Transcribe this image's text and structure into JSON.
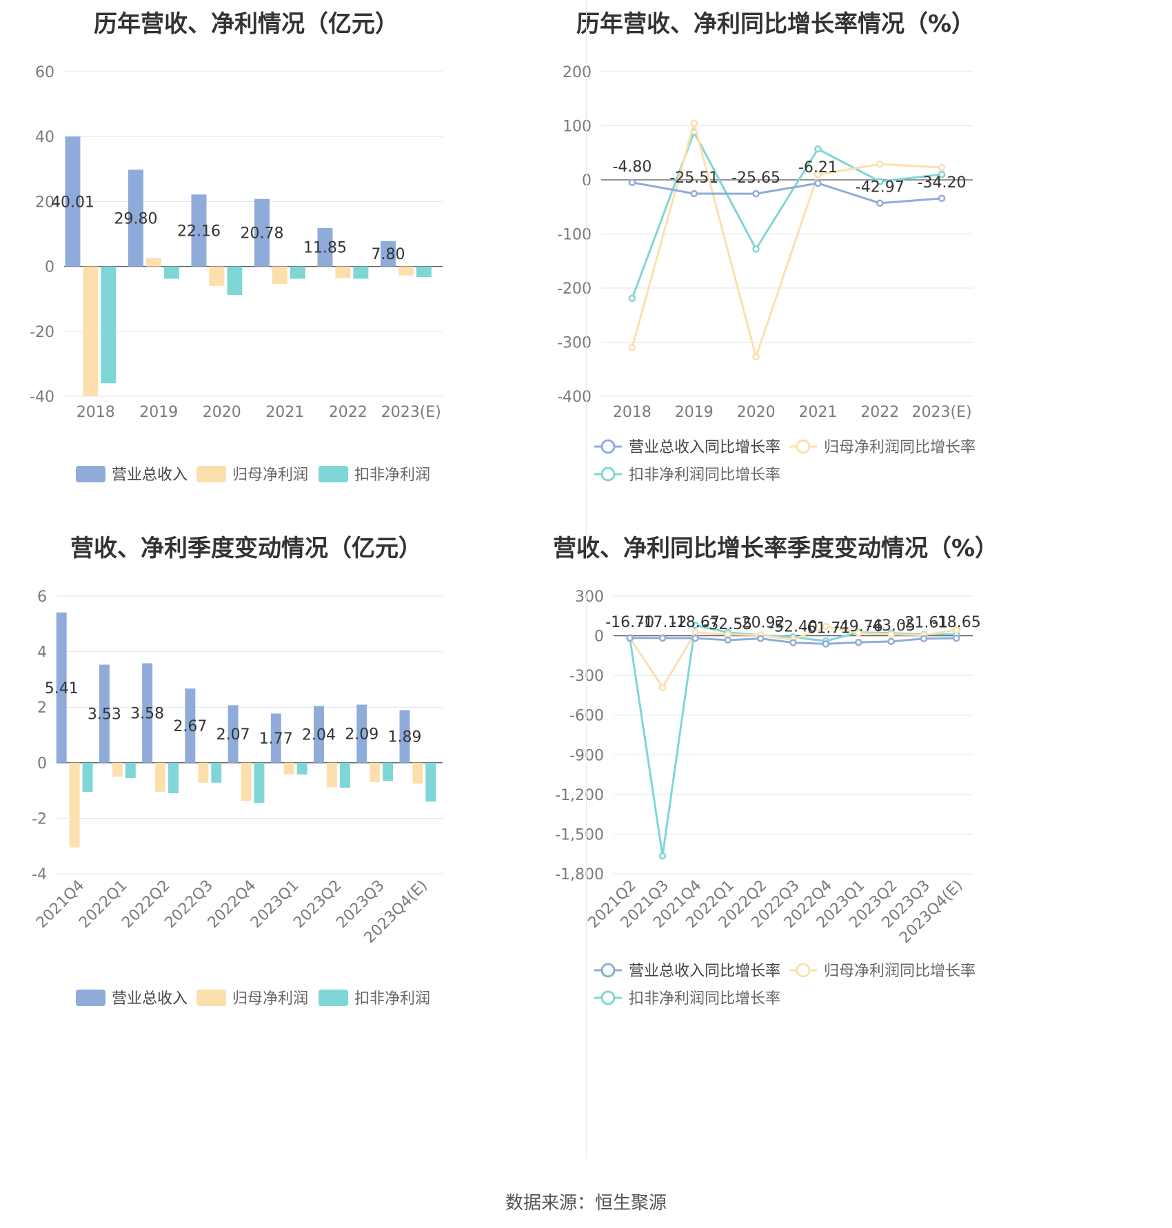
{
  "footer": {
    "source": "数据来源：恒生聚源"
  },
  "colors": {
    "revenue": "#8fabda",
    "net_profit": "#fddfae",
    "deducted_profit": "#7fd6d6"
  },
  "chart_data": [
    {
      "id": "annual_values",
      "type": "bar",
      "title": "历年营收、净利情况（亿元）",
      "categories": [
        "2018",
        "2019",
        "2020",
        "2021",
        "2022",
        "2023(E)"
      ],
      "ylim": [
        -40,
        60
      ],
      "yticks": [
        60,
        40,
        20,
        0,
        -20,
        -40
      ],
      "series": [
        {
          "name": "营业总收入",
          "values": [
            40.01,
            29.8,
            22.16,
            20.78,
            11.85,
            7.8
          ],
          "labels": [
            "40.01",
            "29.80",
            "22.16",
            "20.78",
            "11.85",
            "7.80"
          ]
        },
        {
          "name": "归母净利润",
          "values": [
            -40.0,
            2.6,
            -6.0,
            -5.4,
            -3.6,
            -2.8
          ]
        },
        {
          "name": "扣非净利润",
          "values": [
            -36.0,
            -3.8,
            -8.8,
            -3.8,
            -3.8,
            -3.3
          ]
        }
      ],
      "legend": "bottom"
    },
    {
      "id": "annual_growth",
      "type": "line",
      "title": "历年营收、净利同比增长率情况（%）",
      "categories": [
        "2018",
        "2019",
        "2020",
        "2021",
        "2022",
        "2023(E)"
      ],
      "ylim": [
        -400,
        200
      ],
      "yticks": [
        200,
        100,
        0,
        -100,
        -200,
        -300,
        -400
      ],
      "series": [
        {
          "name": "营业总收入同比增长率",
          "values": [
            -4.8,
            -25.51,
            -25.65,
            -6.21,
            -42.97,
            -34.2
          ],
          "labels": [
            "-4.80",
            "-25.51",
            "-25.65",
            "-6.21",
            "-42.97",
            "-34.20"
          ]
        },
        {
          "name": "归母净利润同比增长率",
          "values": [
            -310,
            105,
            -327,
            10,
            29,
            23
          ]
        },
        {
          "name": "扣非净利润同比增长率",
          "values": [
            -219,
            88,
            -128,
            57,
            -3,
            10
          ]
        }
      ],
      "legend": "bottom"
    },
    {
      "id": "quarterly_values",
      "type": "bar",
      "title": "营收、净利季度变动情况（亿元）",
      "categories": [
        "2021Q4",
        "2022Q1",
        "2022Q2",
        "2022Q3",
        "2022Q4",
        "2023Q1",
        "2023Q2",
        "2023Q3",
        "2023Q4(E)"
      ],
      "ylim": [
        -4,
        6
      ],
      "yticks": [
        6,
        4,
        2,
        0,
        -2,
        -4
      ],
      "series": [
        {
          "name": "营业总收入",
          "values": [
            5.41,
            3.53,
            3.58,
            2.67,
            2.07,
            1.77,
            2.04,
            2.09,
            1.89
          ],
          "labels": [
            "5.41",
            "3.53",
            "3.58",
            "2.67",
            "2.07",
            "1.77",
            "2.04",
            "2.09",
            "1.89"
          ]
        },
        {
          "name": "归母净利润",
          "values": [
            -3.05,
            -0.5,
            -1.05,
            -0.72,
            -1.38,
            -0.42,
            -0.88,
            -0.7,
            -0.75
          ]
        },
        {
          "name": "扣非净利润",
          "values": [
            -1.05,
            -0.55,
            -1.1,
            -0.72,
            -1.45,
            -0.42,
            -0.9,
            -0.65,
            -1.4
          ]
        }
      ],
      "legend": "bottom"
    },
    {
      "id": "quarterly_growth",
      "type": "line",
      "title": "营收、净利同比增长率季度变动情况（%）",
      "categories": [
        "2021Q2",
        "2021Q3",
        "2021Q4",
        "2022Q1",
        "2022Q2",
        "2022Q3",
        "2022Q4",
        "2023Q1",
        "2023Q2",
        "2023Q3",
        "2023Q4(E)"
      ],
      "ylim": [
        -1800,
        300
      ],
      "yticks": [
        300,
        0,
        -300,
        -600,
        -900,
        -1200,
        -1500,
        -1800
      ],
      "ytick_labels": [
        "300",
        "0",
        "-300",
        "-600",
        "-900",
        "-1,200",
        "-1,500",
        "-1,800"
      ],
      "series": [
        {
          "name": "营业总收入同比增长率",
          "values": [
            -16.7,
            -17.12,
            -18.67,
            -32.55,
            -20.92,
            -52.4,
            -61.71,
            -49.76,
            -43.05,
            -21.61,
            -18.65
          ],
          "labels": [
            "-16.70",
            "-17.12",
            "-18.67",
            "-32.55",
            "-20.92",
            "-52.40",
            "-61.71",
            "-49.76",
            "-43.05",
            "-21.61",
            "-18.65"
          ]
        },
        {
          "name": "归母净利润同比增长率",
          "values": [
            -15,
            -390,
            25,
            10,
            5,
            -30,
            70,
            20,
            10,
            5,
            45
          ]
        },
        {
          "name": "扣非净利润同比增长率",
          "values": [
            -20,
            -1665,
            80,
            25,
            5,
            -10,
            -40,
            25,
            20,
            10,
            10
          ]
        }
      ],
      "legend": "bottom"
    }
  ]
}
